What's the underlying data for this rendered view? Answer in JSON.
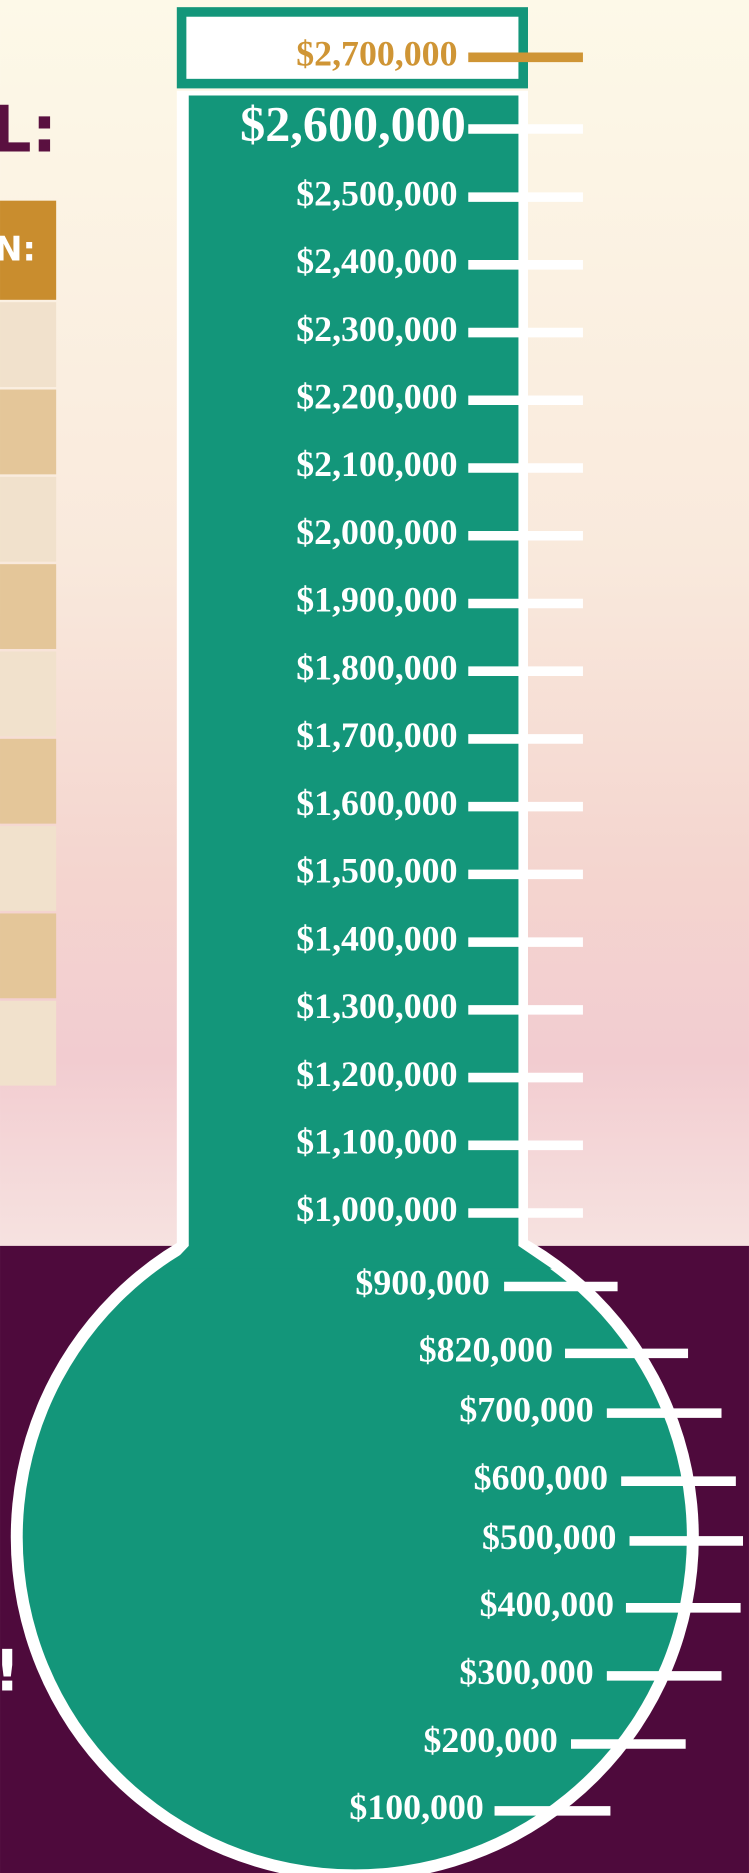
{
  "heading_fragment": "L:",
  "table": {
    "header": "N:"
  },
  "thermometer": {
    "labels": [
      "$2,700,000",
      "$2,600,000",
      "$2,500,000",
      "$2,400,000",
      "$2,300,000",
      "$2,200,000",
      "$2,100,000",
      "$2,000,000",
      "$1,900,000",
      "$1,800,000",
      "$1,700,000",
      "$1,600,000",
      "$1,500,000",
      "$1,400,000",
      "$1,300,000",
      "$1,200,000",
      "$1,100,000",
      "$1,000,000",
      "$900,000",
      "$820,000",
      "$700,000",
      "$600,000",
      "$500,000",
      "$400,000",
      "$300,000",
      "$200,000",
      "$100,000"
    ]
  },
  "note_fragment": "!"
}
